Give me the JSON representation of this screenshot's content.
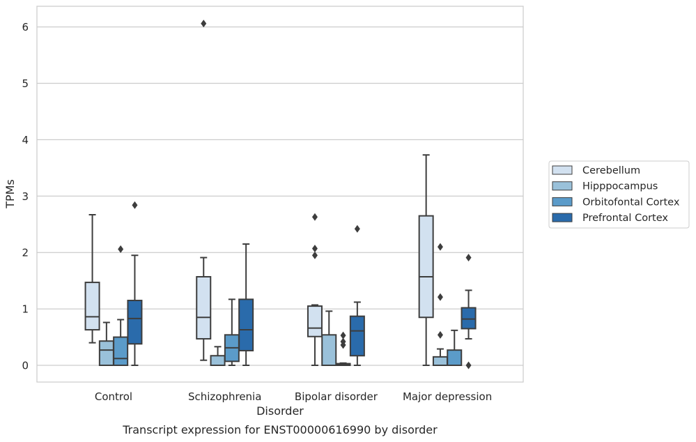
{
  "chart_data": {
    "type": "boxplot",
    "caption": "Transcript expression for ENST00000616990 by disorder",
    "xlabel": "Disorder",
    "ylabel": "TPMs",
    "ylim": [
      -0.3,
      6.38
    ],
    "yticks": [
      0,
      1,
      2,
      3,
      4,
      5,
      6
    ],
    "grid": "horizontal",
    "legend_position": "right",
    "categories": [
      "Control",
      "Schizophrenia",
      "Bipolar disorder",
      "Major depression"
    ],
    "series": [
      {
        "name": "Cerebellum",
        "color": "#d2e1f0",
        "boxes": [
          {
            "whislo": 0.4,
            "q1": 0.63,
            "med": 0.86,
            "q3": 1.47,
            "whishi": 2.67,
            "fliers": []
          },
          {
            "whislo": 0.09,
            "q1": 0.47,
            "med": 0.85,
            "q3": 1.57,
            "whishi": 1.91,
            "fliers": [
              6.06
            ]
          },
          {
            "whislo": 0.0,
            "q1": 0.51,
            "med": 0.66,
            "q3": 1.05,
            "whishi": 1.07,
            "fliers": [
              1.95,
              2.07,
              2.63
            ]
          },
          {
            "whislo": 0.0,
            "q1": 0.85,
            "med": 1.57,
            "q3": 2.65,
            "whishi": 3.73,
            "fliers": []
          }
        ]
      },
      {
        "name": "Hipppocampus",
        "color": "#9ac1da",
        "boxes": [
          {
            "whislo": 0.0,
            "q1": 0.0,
            "med": 0.27,
            "q3": 0.43,
            "whishi": 0.76,
            "fliers": []
          },
          {
            "whislo": 0.0,
            "q1": 0.0,
            "med": 0.0,
            "q3": 0.17,
            "whishi": 0.33,
            "fliers": []
          },
          {
            "whislo": 0.0,
            "q1": 0.0,
            "med": 0.0,
            "q3": 0.54,
            "whishi": 0.96,
            "fliers": []
          },
          {
            "whislo": 0.0,
            "q1": 0.0,
            "med": 0.0,
            "q3": 0.15,
            "whishi": 0.29,
            "fliers": [
              0.54,
              1.21,
              2.1
            ]
          }
        ]
      },
      {
        "name": "Orbitofontal Cortex",
        "color": "#5b9bc9",
        "boxes": [
          {
            "whislo": 0.0,
            "q1": 0.0,
            "med": 0.12,
            "q3": 0.5,
            "whishi": 0.81,
            "fliers": [
              2.06
            ]
          },
          {
            "whislo": 0.0,
            "q1": 0.07,
            "med": 0.31,
            "q3": 0.54,
            "whishi": 1.17,
            "fliers": []
          },
          {
            "whislo": 0.0,
            "q1": 0.0,
            "med": 0.01,
            "q3": 0.03,
            "whishi": 0.04,
            "fliers": [
              0.36,
              0.42,
              0.53
            ]
          },
          {
            "whislo": 0.0,
            "q1": 0.0,
            "med": 0.0,
            "q3": 0.27,
            "whishi": 0.62,
            "fliers": []
          }
        ]
      },
      {
        "name": "Prefrontal Cortex",
        "color": "#2a6bab",
        "boxes": [
          {
            "whislo": 0.0,
            "q1": 0.38,
            "med": 0.83,
            "q3": 1.15,
            "whishi": 1.95,
            "fliers": [
              2.84
            ]
          },
          {
            "whislo": 0.0,
            "q1": 0.26,
            "med": 0.63,
            "q3": 1.17,
            "whishi": 2.15,
            "fliers": []
          },
          {
            "whislo": 0.0,
            "q1": 0.17,
            "med": 0.61,
            "q3": 0.87,
            "whishi": 1.12,
            "fliers": [
              2.42
            ]
          },
          {
            "whislo": 0.47,
            "q1": 0.65,
            "med": 0.82,
            "q3": 1.02,
            "whishi": 1.33,
            "fliers": [
              0.0,
              1.91
            ]
          }
        ]
      }
    ]
  }
}
